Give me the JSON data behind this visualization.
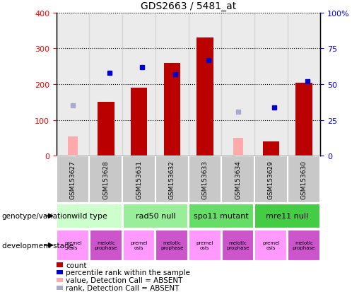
{
  "title": "GDS2663 / 5481_at",
  "samples": [
    "GSM153627",
    "GSM153628",
    "GSM153631",
    "GSM153632",
    "GSM153633",
    "GSM153634",
    "GSM153629",
    "GSM153630"
  ],
  "count_values": [
    null,
    150,
    190,
    260,
    330,
    null,
    40,
    205
  ],
  "count_absent_values": [
    55,
    null,
    null,
    null,
    null,
    50,
    null,
    null
  ],
  "rank_pct_values": [
    null,
    58,
    62,
    57,
    67,
    null,
    34,
    52
  ],
  "rank_pct_absent": [
    35,
    null,
    null,
    null,
    null,
    31,
    null,
    null
  ],
  "left_ylim": [
    0,
    400
  ],
  "right_ylim": [
    0,
    100
  ],
  "left_yticks": [
    0,
    100,
    200,
    300,
    400
  ],
  "right_yticks": [
    0,
    25,
    50,
    75,
    100
  ],
  "right_yticklabels": [
    "0",
    "25",
    "50",
    "75",
    "100%"
  ],
  "bar_color": "#bb0000",
  "bar_absent_color": "#ffaaaa",
  "rank_color": "#0000cc",
  "rank_absent_color": "#aaaacc",
  "genotype_groups": [
    {
      "label": "wild type",
      "start": 0,
      "end": 2,
      "color": "#ccffcc"
    },
    {
      "label": "rad50 null",
      "start": 2,
      "end": 4,
      "color": "#99ee99"
    },
    {
      "label": "spo11 mutant",
      "start": 4,
      "end": 6,
      "color": "#66dd66"
    },
    {
      "label": "mre11 null",
      "start": 6,
      "end": 8,
      "color": "#44cc44"
    }
  ],
  "dev_stage_labels": [
    "premei\nosis",
    "meiotic\nprophase",
    "premei\nosis",
    "meiotic\nprophase",
    "premei\nosis",
    "meiotic\nprophase",
    "premei\nosis",
    "meiotic\nprophase"
  ],
  "dev_stage_colors": [
    "#ff99ff",
    "#cc55cc",
    "#ff99ff",
    "#cc55cc",
    "#ff99ff",
    "#cc55cc",
    "#ff99ff",
    "#cc55cc"
  ],
  "sample_bg_color": "#c8c8c8",
  "legend_items": [
    {
      "label": "count",
      "color": "#bb0000"
    },
    {
      "label": "percentile rank within the sample",
      "color": "#0000cc"
    },
    {
      "label": "value, Detection Call = ABSENT",
      "color": "#ffaaaa"
    },
    {
      "label": "rank, Detection Call = ABSENT",
      "color": "#aaaacc"
    }
  ],
  "fig_width": 5.15,
  "fig_height": 4.14,
  "dpi": 100
}
